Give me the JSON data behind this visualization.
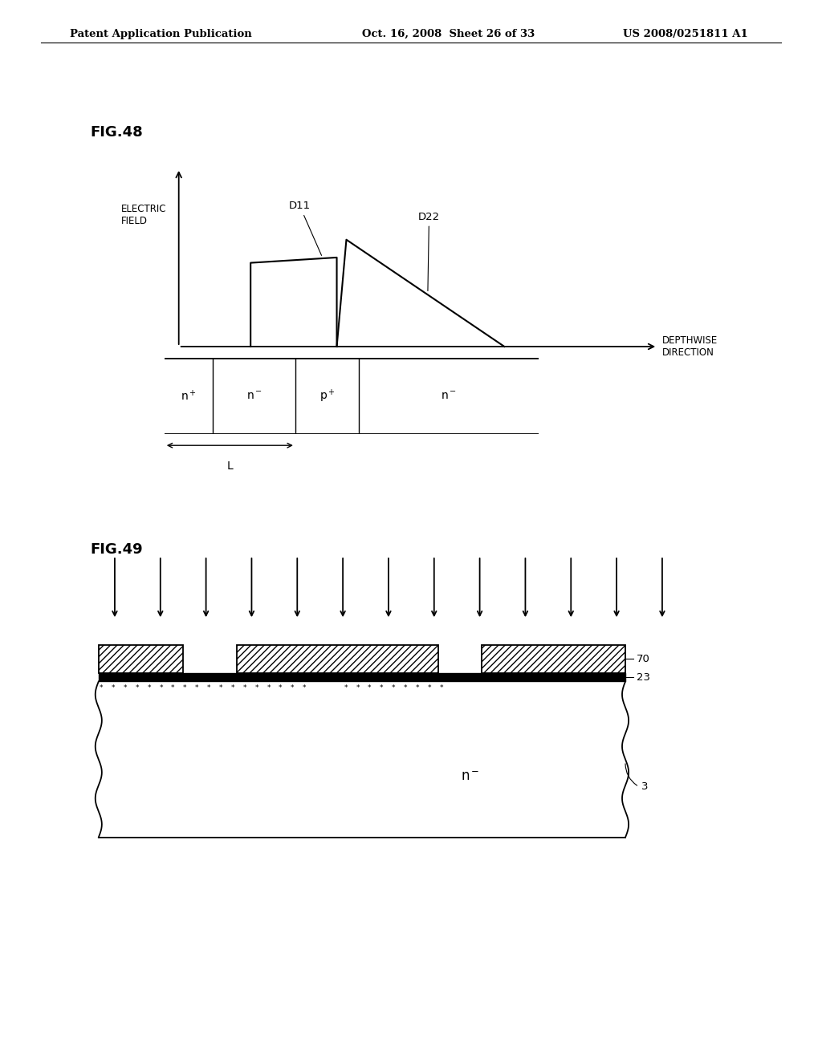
{
  "bg_color": "#ffffff",
  "header_left": "Patent Application Publication",
  "header_mid": "Oct. 16, 2008  Sheet 26 of 33",
  "header_right": "US 2008/0251811 A1",
  "fig48_label": "FIG.48",
  "fig49_label": "FIG.49",
  "ylabel_48": "ELECTRIC\nFIELD",
  "xlabel_48": "DEPTHWISE\nDIRECTION",
  "d11_label": "D11",
  "d22_label": "D22",
  "region_labels": [
    "n+",
    "n−",
    "p+",
    "n−"
  ],
  "L_label": "L",
  "label_70": "70",
  "label_23": "23",
  "label_3": "3",
  "label_n_minus": "n−"
}
